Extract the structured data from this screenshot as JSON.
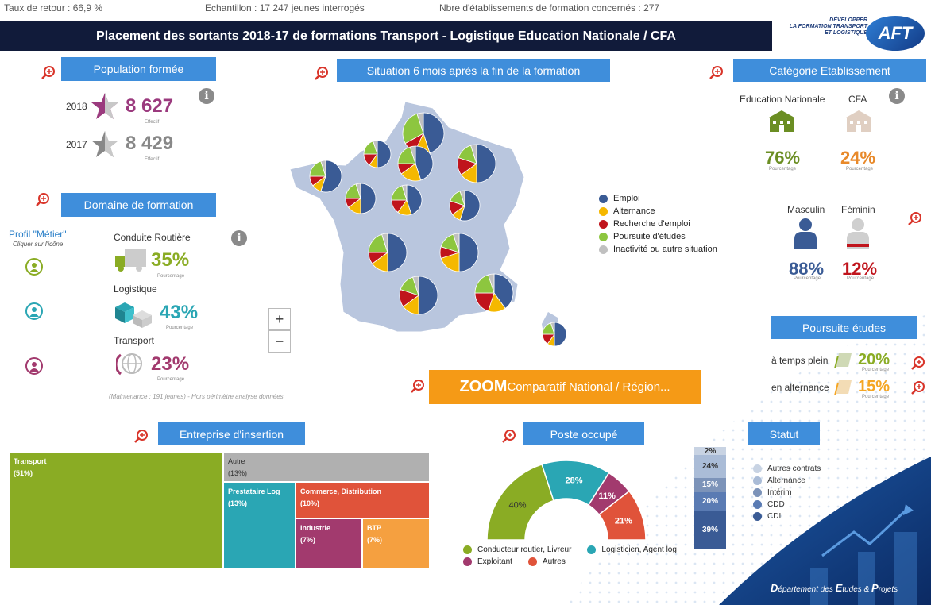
{
  "top_stats": {
    "taux_retour": "Taux de retour : 66,9 %",
    "echantillon": "Echantillon : 17 247 jeunes interrogés",
    "etablissements": "Nbre d'établissements de formation concernés : 277"
  },
  "title": "Placement des sortants 2018-17 de formations Transport - Logistique Education Nationale / CFA",
  "logo": {
    "line1": "DÉVELOPPER",
    "line2": "LA FORMATION TRANSPORT",
    "line3": "ET LOGISTIQUE",
    "brand": "AFT"
  },
  "population": {
    "header": "Population formée",
    "rows": [
      {
        "year": "2018",
        "value": "8 627",
        "sub": "Effectif",
        "color": "#9b3a7e"
      },
      {
        "year": "2017",
        "value": "8 429",
        "sub": "Effectif",
        "color": "#888888"
      }
    ]
  },
  "domaine": {
    "header": "Domaine de formation",
    "profil_title": "Profil \"Métier\"",
    "profil_sub": "Cliquer sur l'icône",
    "items": [
      {
        "name": "Conduite Routière",
        "pct": "35%",
        "sub": "Pourcentage",
        "color": "#8aac24"
      },
      {
        "name": "Logistique",
        "pct": "43%",
        "sub": "Pourcentage",
        "color": "#2aa6b4"
      },
      {
        "name": "Transport",
        "pct": "23%",
        "sub": "Pourcentage",
        "color": "#a23a6e"
      }
    ],
    "note": "(Maintenance : 191 jeunes) - Hors périmètre analyse données"
  },
  "situation": {
    "header": "Situation 6 mois après la fin de la formation",
    "legend": [
      {
        "label": "Emploi",
        "color": "#3a5b95"
      },
      {
        "label": "Alternance",
        "color": "#f5b800"
      },
      {
        "label": "Recherche d'emploi",
        "color": "#c0141c"
      },
      {
        "label": "Poursuite d'études",
        "color": "#8dc63f"
      },
      {
        "label": "Inactivité ou autre situation",
        "color": "#c0c0c0"
      }
    ],
    "zoom_in": "+",
    "zoom_out": "−"
  },
  "categorie": {
    "header": "Catégorie Etablissement",
    "items": [
      {
        "name": "Education Nationale",
        "pct": "76%",
        "sub": "Pourcentage",
        "color": "#6b8e23"
      },
      {
        "name": "CFA",
        "pct": "24%",
        "sub": "Pourcentage",
        "color": "#e8892a"
      }
    ],
    "gender": [
      {
        "name": "Masculin",
        "pct": "88%",
        "sub": "Pourcentage",
        "color": "#3a5b95"
      },
      {
        "name": "Féminin",
        "pct": "12%",
        "sub": "Pourcentage",
        "color": "#c0141c"
      }
    ]
  },
  "poursuite": {
    "header": "Poursuite études",
    "rows": [
      {
        "label": "à temps plein",
        "pct": "20%",
        "sub": "Pourcentage",
        "color": "#8aac24"
      },
      {
        "label": "en alternance",
        "pct": "15%",
        "sub": "Pourcentage",
        "color": "#f5a623"
      }
    ]
  },
  "zoom_button": {
    "bold": "ZOOM",
    "rest": " Comparatif National / Région..."
  },
  "entreprise": {
    "header": "Entreprise d'insertion",
    "cells": [
      {
        "name": "Transport",
        "pct": "(51%)",
        "color": "#8aac24"
      },
      {
        "name": "Autre",
        "pct": "(13%)",
        "color": "#b0b0b0"
      },
      {
        "name": "Prestataire Log",
        "pct": "(13%)",
        "color": "#2aa6b4"
      },
      {
        "name": "Commerce, Distribution",
        "pct": "(10%)",
        "color": "#e0533a"
      },
      {
        "name": "Industrie",
        "pct": "(7%)",
        "color": "#a23a6e"
      },
      {
        "name": "BTP",
        "pct": "(7%)",
        "color": "#f5a040"
      }
    ]
  },
  "poste": {
    "header": "Poste occupé",
    "slices": [
      {
        "label": "40%",
        "value": 40,
        "color": "#8aac24"
      },
      {
        "label": "28%",
        "value": 28,
        "color": "#2aa6b4"
      },
      {
        "label": "11%",
        "value": 11,
        "color": "#a23a6e"
      },
      {
        "label": "21%",
        "value": 21,
        "color": "#e0533a"
      }
    ],
    "legend": [
      {
        "label": "Conducteur routier, Livreur",
        "color": "#8aac24"
      },
      {
        "label": "Logisticien, Agent log",
        "color": "#2aa6b4"
      },
      {
        "label": "Exploitant",
        "color": "#a23a6e"
      },
      {
        "label": "Autres",
        "color": "#e0533a"
      }
    ]
  },
  "statut": {
    "header": "Statut",
    "segments": [
      {
        "label": "2%",
        "value": 2,
        "color": "#c8d3e3"
      },
      {
        "label": "24%",
        "value": 24,
        "color": "#aabcd7"
      },
      {
        "label": "15%",
        "value": 15,
        "color": "#7c93b9"
      },
      {
        "label": "20%",
        "value": 20,
        "color": "#5a7bb3"
      },
      {
        "label": "39%",
        "value": 39,
        "color": "#3a5b95"
      }
    ],
    "legend": [
      {
        "label": "Autres contrats",
        "color": "#c8d3e3"
      },
      {
        "label": "Alternance",
        "color": "#aabcd7"
      },
      {
        "label": "Intérim",
        "color": "#7c93b9"
      },
      {
        "label": "CDD",
        "color": "#5a7bb3"
      },
      {
        "label": "CDI",
        "color": "#3a5b95"
      }
    ]
  },
  "footer": {
    "d": "D",
    "t1": "épartement des ",
    "e": "E",
    "t2": "tudes & ",
    "p": "P",
    "t3": "rojets"
  }
}
